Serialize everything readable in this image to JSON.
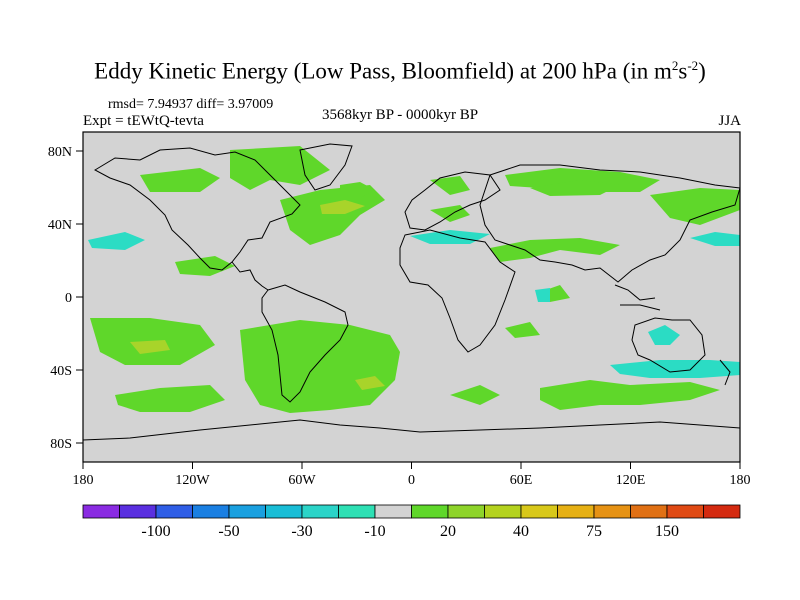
{
  "title": {
    "main": "Eddy Kinetic Energy (Low Pass, Bloomfield) at 200 hPa (in m",
    "sup1": "2",
    "mid": "s",
    "sup2": "-2",
    "end": ")"
  },
  "stats": "rmsd= 7.94937 diff= 3.97009",
  "expt": "Expt = tEWtQ-tevta",
  "period": "3568kyr BP - 0000kyr BP",
  "season": "JJA",
  "colors": {
    "background_field": "#d3d3d3",
    "pos_low": "#5fd72a",
    "pos_mid": "#a8d42a",
    "neg_low": "#2bdcc4"
  },
  "map": {
    "lat_ticks": [
      "80N",
      "40N",
      "0",
      "40S",
      "80S"
    ],
    "lon_ticks": [
      "180",
      "120W",
      "60W",
      "0",
      "60E",
      "120E",
      "180"
    ]
  },
  "colorbar": {
    "labels": [
      "-100",
      "-50",
      "-30",
      "-10",
      "20",
      "40",
      "75",
      "150"
    ],
    "colors": [
      "#8a2be2",
      "#5a2fe0",
      "#2f5ee6",
      "#1a7fe2",
      "#1aa0e0",
      "#19bdd6",
      "#2bd4c8",
      "#2ee0b4",
      "#d3d3d3",
      "#5fd72a",
      "#8ed42a",
      "#b4d21e",
      "#d8c81a",
      "#e6b014",
      "#e69214",
      "#e07014",
      "#e04a14",
      "#d42a10"
    ]
  }
}
